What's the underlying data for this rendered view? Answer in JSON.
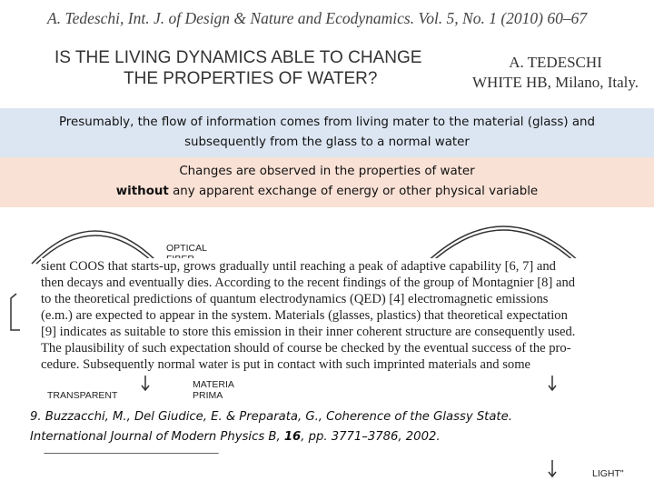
{
  "header": {
    "citation": "A. Tedeschi, Int. J. of Design & Nature and Ecodynamics. Vol. 5, No. 1 (2010) 60–67",
    "title_lines": [
      "IS THE LIVING DYNAMICS ABLE TO CHANGE",
      "THE PROPERTIES OF WATER?"
    ],
    "author": "A. TEDESCHI",
    "affiliation": "WHITE HB, Milano, Italy."
  },
  "banners": {
    "first": "Presumably, the flow of information comes from living mater to the material (glass) and subsequently from the glass to a normal water",
    "second_line1": "Changes are observed in the properties of water",
    "second_bold": "without",
    "second_rest": " any apparent exchange of energy or other physical variable"
  },
  "diagram": {
    "labels": [
      "OPTICAL",
      "FIBER",
      "MATERIA",
      "PRIMA",
      "TRANSPARENT",
      "LIGHT\""
    ]
  },
  "excerpt": {
    "lines": [
      "sient COOS that starts-up, grows gradually until reaching a peak of adaptive capability [6, 7] and",
      "then decays and eventually dies. According to the recent findings of the group of Montagnier [8] and",
      "to the theoretical predictions of quantum electrodynamics (QED) [4] electromagnetic emissions",
      "(e.m.) are expected to appear in the system. Materials (glasses, plastics) that theoretical expectation",
      "[9] indicates as suitable to store this emission in their inner coherent structure are consequently used.",
      "The plausibility of such expectation should of course be checked by the eventual success of the pro-",
      "cedure. Subsequently normal water is put in contact with such imprinted materials and some"
    ]
  },
  "reference": {
    "line1": "9. Buzzacchi, M., Del Giudice, E. & Preparata, G., Coherence of the Glassy State.",
    "line2_start": "International Journal of Modern Physics B, ",
    "volume": "16",
    "line2_end": ", pp. 3771–3786, 2002."
  }
}
